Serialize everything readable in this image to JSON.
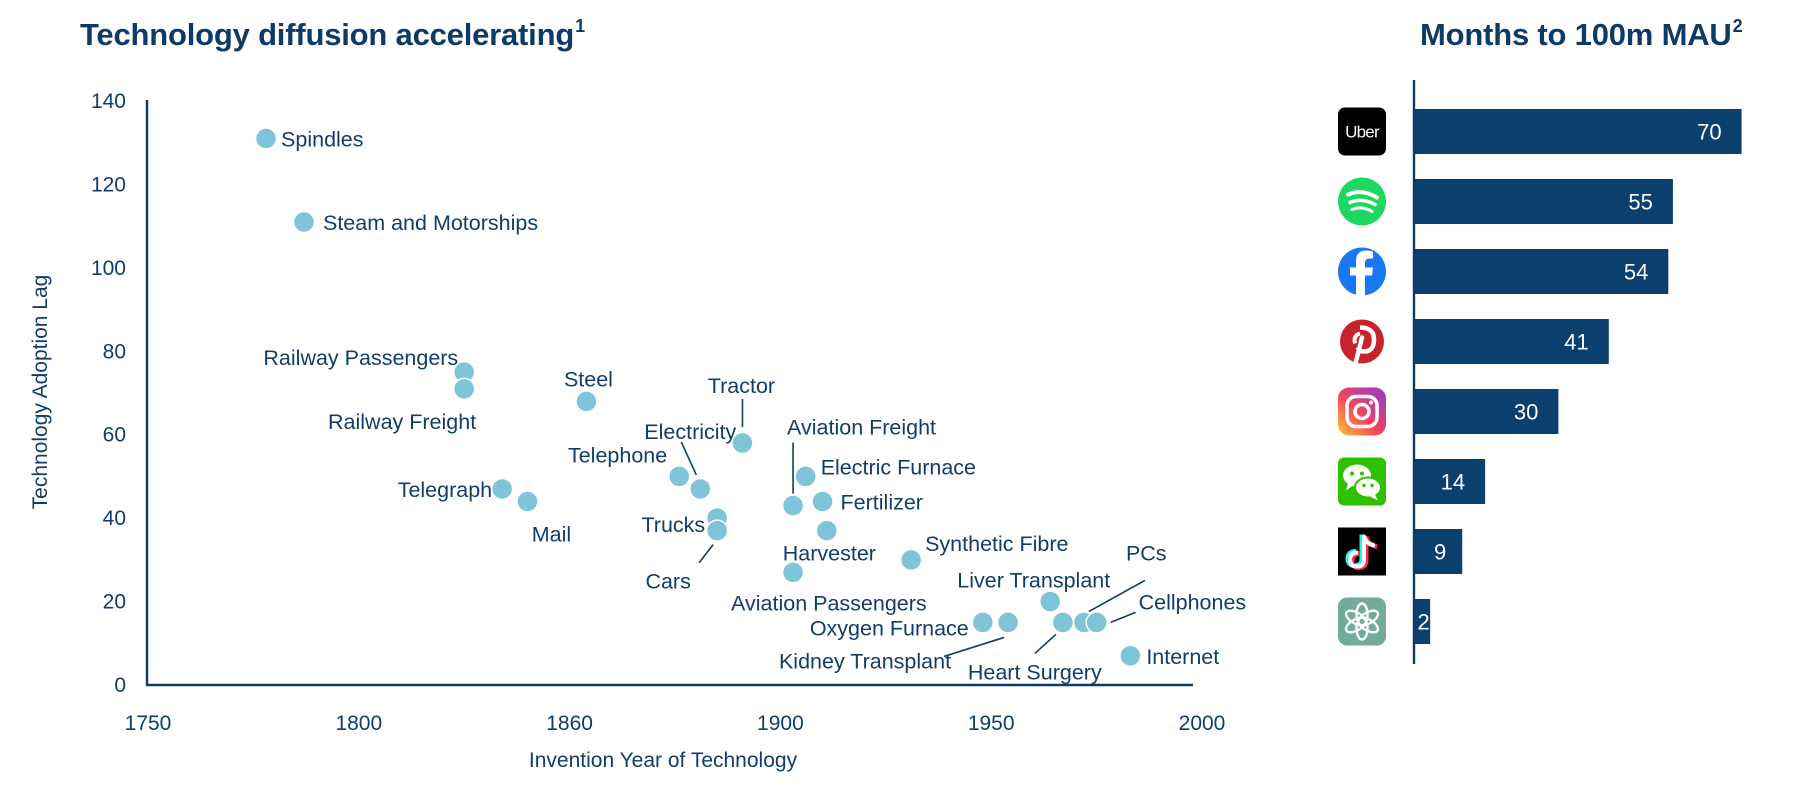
{
  "colors": {
    "title": "#0e3a68",
    "text": "#123d6b",
    "point": "#7fc4d8",
    "bar": "#0a3f6e",
    "axis": "#0d3a66"
  },
  "chart_data": [
    {
      "type": "scatter",
      "title": "Technology diffusion accelerating",
      "title_footnote": "1",
      "xlabel": "Invention Year of Technology",
      "ylabel": "Technology Adoption Lag",
      "xlim": [
        1750,
        2000
      ],
      "ylim": [
        0,
        140
      ],
      "x_ticks": [
        "1750",
        "1800",
        "1860",
        "1900",
        "1950",
        "2000"
      ],
      "y_ticks": [
        "0",
        "20",
        "40",
        "60",
        "80",
        "100",
        "120",
        "140"
      ],
      "grid": false,
      "points": [
        {
          "label": "Spindles",
          "x": 1778,
          "y": 131
        },
        {
          "label": "Steam and Motorships",
          "x": 1787,
          "y": 111
        },
        {
          "label": "Railway Passengers",
          "x": 1825,
          "y": 75
        },
        {
          "label": "Railway Freight",
          "x": 1825,
          "y": 71
        },
        {
          "label": "Steel",
          "x": 1854,
          "y": 68
        },
        {
          "label": "Telegraph",
          "x": 1834,
          "y": 47
        },
        {
          "label": "Mail",
          "x": 1840,
          "y": 44
        },
        {
          "label": "Tractor",
          "x": 1891,
          "y": 58
        },
        {
          "label": "Telephone",
          "x": 1876,
          "y": 50
        },
        {
          "label": "Electricity",
          "x": 1881,
          "y": 47
        },
        {
          "label": "Trucks",
          "x": 1885,
          "y": 40
        },
        {
          "label": "Cars",
          "x": 1885,
          "y": 37
        },
        {
          "label": "Aviation Freight",
          "x": 1903,
          "y": 43
        },
        {
          "label": "Electric Furnace",
          "x": 1906,
          "y": 50
        },
        {
          "label": "Fertilizer",
          "x": 1910,
          "y": 44
        },
        {
          "label": "Harvester",
          "x": 1911,
          "y": 37
        },
        {
          "label": "Aviation Passengers",
          "x": 1903,
          "y": 27
        },
        {
          "label": "Synthetic Fibre",
          "x": 1931,
          "y": 30
        },
        {
          "label": "Oxygen Furnace",
          "x": 1948,
          "y": 15
        },
        {
          "label": "Kidney Transplant",
          "x": 1954,
          "y": 15
        },
        {
          "label": "Liver Transplant",
          "x": 1964,
          "y": 20
        },
        {
          "label": "Heart Surgery",
          "x": 1967,
          "y": 15
        },
        {
          "label": "PCs",
          "x": 1972,
          "y": 15
        },
        {
          "label": "Cellphones",
          "x": 1975,
          "y": 15
        },
        {
          "label": "Internet",
          "x": 1983,
          "y": 7
        }
      ]
    },
    {
      "type": "bar",
      "orientation": "horizontal",
      "title": "Months to 100m MAU",
      "title_footnote": "2",
      "xlabel": "",
      "ylabel": "",
      "categories": [
        "Uber",
        "Spotify",
        "Facebook",
        "Pinterest",
        "Instagram",
        "WeChat",
        "TikTok",
        "ChatGPT"
      ],
      "values": [
        70,
        55,
        54,
        41,
        30,
        14,
        9,
        2
      ],
      "data_labels": [
        "70",
        "55",
        "54",
        "41",
        "30",
        "14",
        "9",
        "2"
      ],
      "icons": [
        "uber-icon",
        "spotify-icon",
        "facebook-icon",
        "pinterest-icon",
        "instagram-icon",
        "wechat-icon",
        "tiktok-icon",
        "chatgpt-icon"
      ],
      "uber_icon_text": "Uber",
      "xlim": [
        0,
        70
      ]
    }
  ]
}
